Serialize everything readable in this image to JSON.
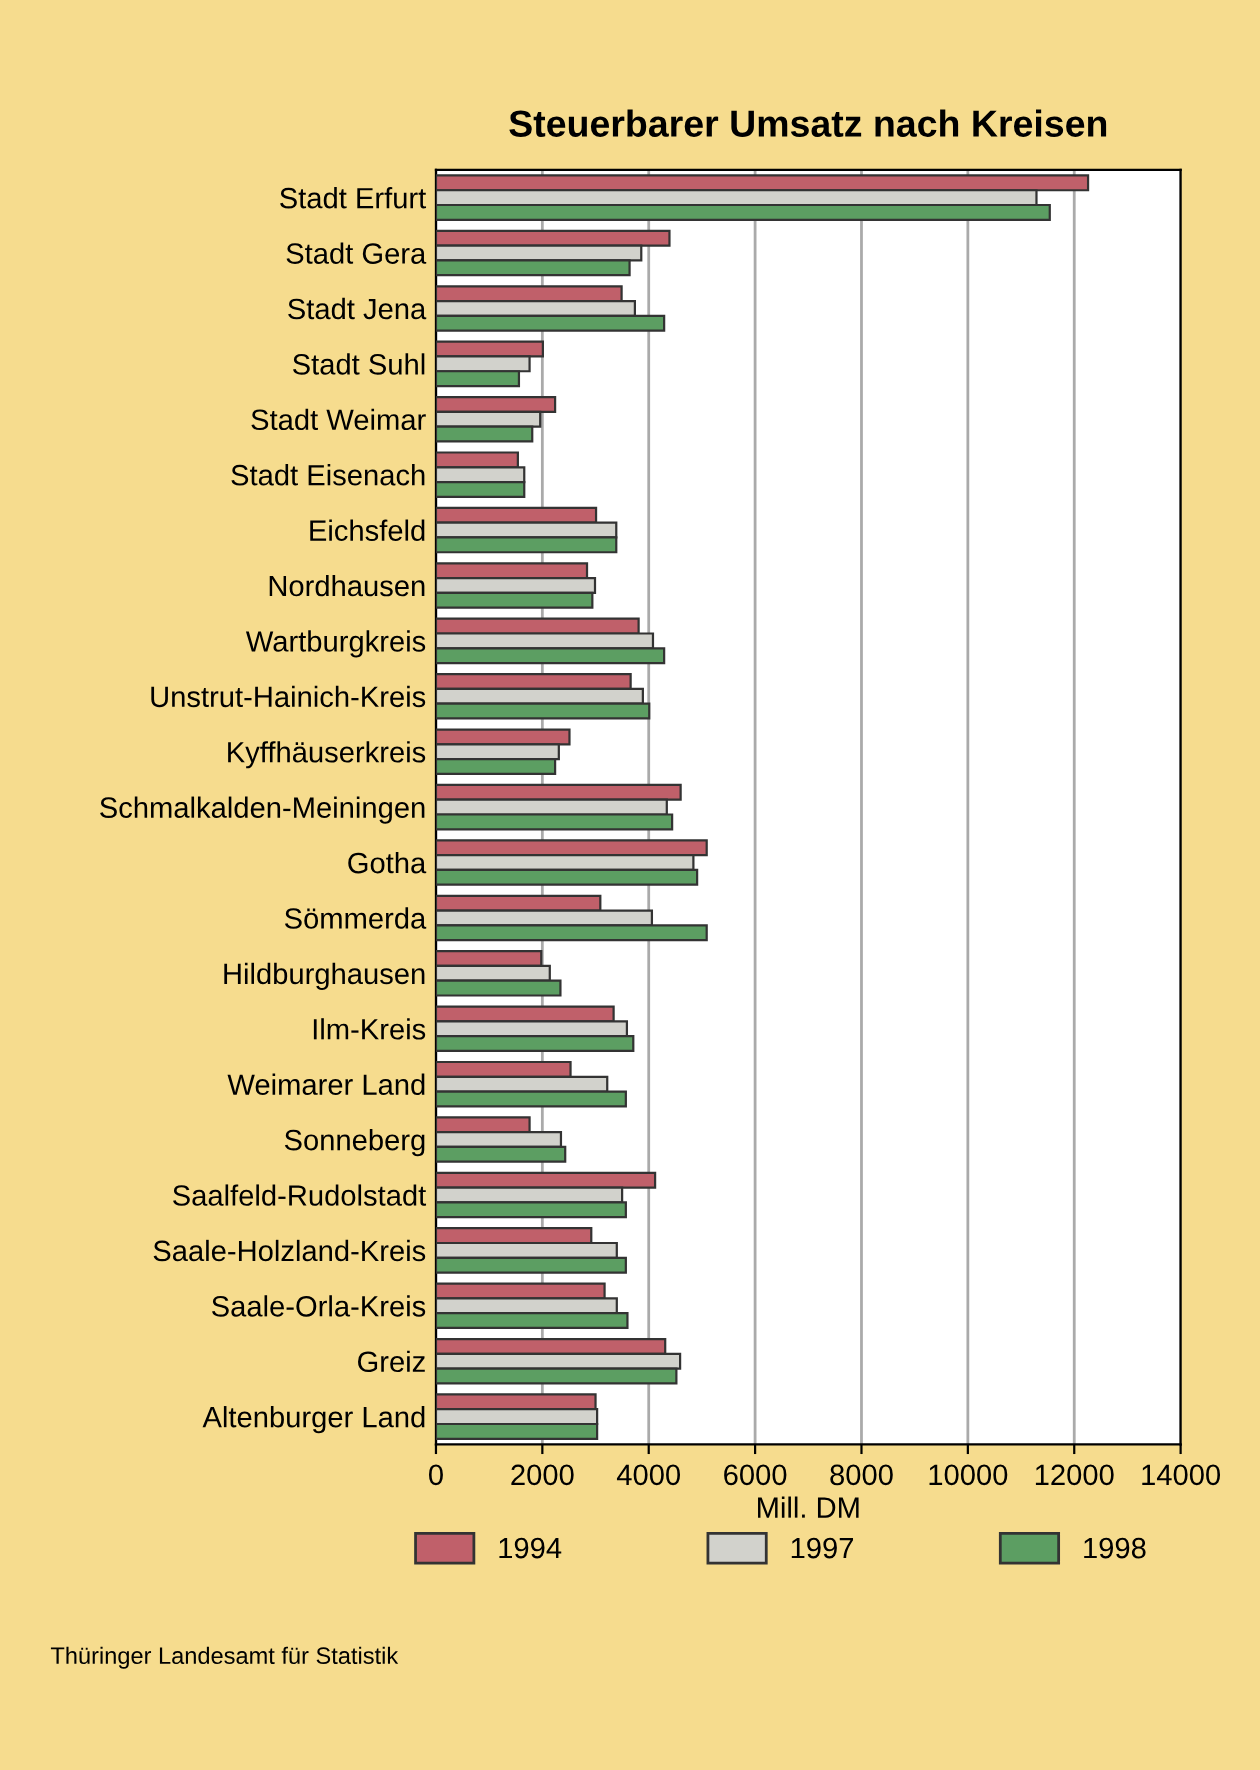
{
  "chart_data": {
    "type": "bar",
    "orientation": "horizontal",
    "title": "Steuerbarer Umsatz nach Kreisen",
    "xlabel": "Mill. DM",
    "categories": [
      "Stadt Erfurt",
      "Stadt Gera",
      "Stadt Jena",
      "Stadt Suhl",
      "Stadt Weimar",
      "Stadt Eisenach",
      "Eichsfeld",
      "Nordhausen",
      "Wartburgkreis",
      "Unstrut-Hainich-Kreis",
      "Kyffhäuserkreis",
      "Schmalkalden-Meiningen",
      "Gotha",
      "Sömmerda",
      "Hildburghausen",
      "Ilm-Kreis",
      "Weimarer Land",
      "Sonneberg",
      "Saalfeld-Rudolstadt",
      "Saale-Holzland-Kreis",
      "Saale-Orla-Kreis",
      "Greiz",
      "Altenburger Land"
    ],
    "series": [
      {
        "name": "1994",
        "color": "#c0606a",
        "values": [
          12260,
          4390,
          3490,
          2010,
          2240,
          1540,
          3010,
          2840,
          3810,
          3660,
          2510,
          4600,
          5090,
          3090,
          1980,
          3340,
          2530,
          1760,
          4120,
          2920,
          3170,
          4310,
          3000
        ]
      },
      {
        "name": "1997",
        "color": "#d2d2cc",
        "values": [
          11290,
          3860,
          3740,
          1760,
          1960,
          1660,
          3390,
          2990,
          4080,
          3890,
          2310,
          4340,
          4840,
          4060,
          2140,
          3590,
          3220,
          2350,
          3500,
          3400,
          3400,
          4590,
          3030
        ]
      },
      {
        "name": "1998",
        "color": "#5c9e62",
        "values": [
          11540,
          3640,
          4290,
          1560,
          1810,
          1660,
          3390,
          2940,
          4290,
          4010,
          2240,
          4440,
          4910,
          5090,
          2340,
          3710,
          3570,
          2430,
          3570,
          3570,
          3600,
          4520,
          3030
        ]
      }
    ],
    "xlim": [
      0,
      14000
    ],
    "xticks": [
      0,
      2000,
      4000,
      6000,
      8000,
      10000,
      12000,
      14000
    ],
    "grid": "x",
    "legend": "bottom",
    "annotations": [
      "Thüringer Landesamt für Statistik"
    ]
  }
}
